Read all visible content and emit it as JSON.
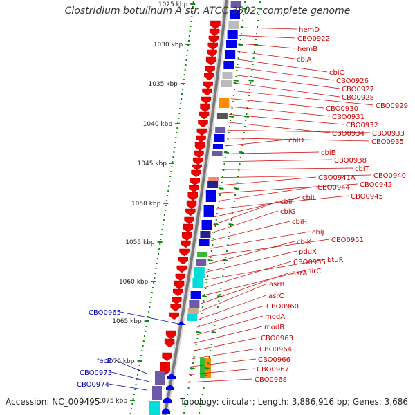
{
  "title": "Clostridium botulinum A str. ATCC 3502, complete genome",
  "accession_text": "Accession: NC_009495",
  "topology_text": "Topology: circular; Length: 3,886,916 bp; Genes: 3,686",
  "ruler_ticks": [
    "1025 kbp",
    "1030 kbp",
    "1035 kbp",
    "1040 kbp",
    "1045 kbp",
    "1050 kbp",
    "1055 kbp",
    "1060 kbp",
    "1065 kbp",
    "1070 kbp",
    "1075 kbp"
  ],
  "right_labels": [
    "hemD",
    "CBO0922",
    "hemB",
    "cbiA",
    "cbiC",
    "CBO0926",
    "CBO0927",
    "CBO0928",
    "CBO0929",
    "CBO0930",
    "CBO0931",
    "CBO0932",
    "CBO0934",
    "CBO0933",
    "CBO0935",
    "cbiD",
    "cbiE",
    "CBO0938",
    "cbiT",
    "CBO0940",
    "CBO0941A",
    "CBO0942",
    "CBO0944",
    "CBO0945",
    "cbiL",
    "cbiF",
    "cbiG",
    "cbiH",
    "cbiJ",
    "CBO0951",
    "cbiK",
    "pduX",
    "btuR",
    "CBO0955",
    "nirC",
    "asrA",
    "asrB",
    "asrC",
    "CBO0960",
    "modA",
    "modB",
    "CBO0963",
    "CBO0964",
    "CBO0966",
    "CBO0967",
    "CBO0968"
  ],
  "left_labels": [
    "CBO0965",
    "fecE",
    "CBO0973",
    "CBO0974"
  ],
  "colors": {
    "label_red": "#cc0000",
    "label_blue": "#0000aa",
    "tick_green": "#118811",
    "backbone": "#7a7a7a",
    "gene_red": "#ee0000",
    "gene_blue": "#0000ee",
    "gene_dark_blue": "#222288",
    "gene_purple": "#6a5aa8",
    "gene_gray": "#bbbbbb",
    "gene_dark_gray": "#555555",
    "gene_orange": "#ff8c00",
    "gene_cyan": "#00dddd",
    "gene_green": "#33bb33",
    "gene_salmon": "#ee8877",
    "gene_tan": "#ccaa88"
  }
}
